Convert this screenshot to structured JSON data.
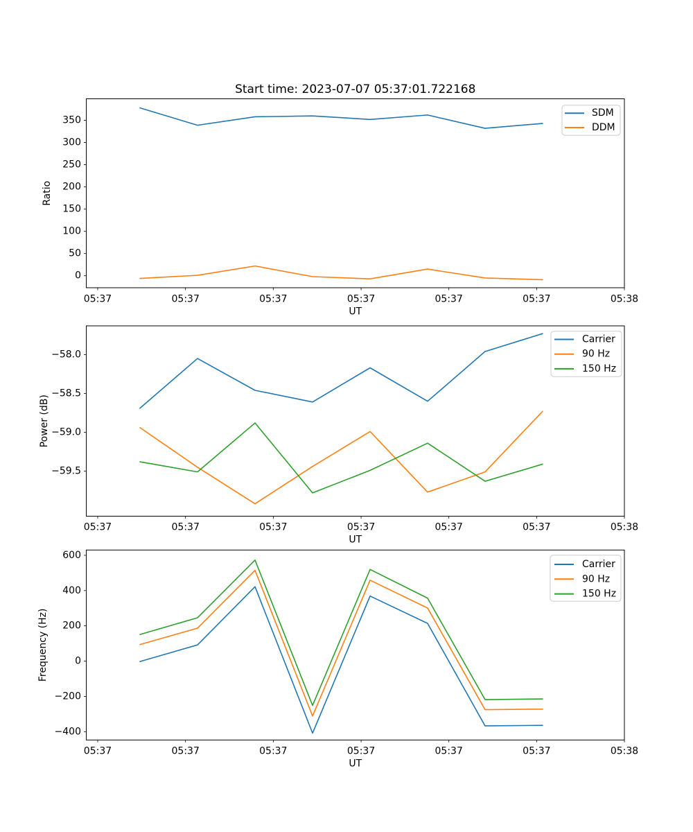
{
  "figure": {
    "background": "#ffffff",
    "text_color": "#000000"
  },
  "chart_data": [
    {
      "type": "line",
      "title": "Start time: 2023-07-07 05:37:01.722168",
      "xlabel": "UT",
      "ylabel": "Ratio",
      "grid": false,
      "legend_position": "upper right",
      "x_tick_labels": [
        "05:37",
        "05:37",
        "05:37",
        "05:37",
        "05:37",
        "05:37",
        "05:38"
      ],
      "x_tick_positions": [
        0.0212,
        0.1844,
        0.3475,
        0.5107,
        0.6738,
        0.8369,
        1.0
      ],
      "y_ticks": [
        0,
        50,
        100,
        150,
        200,
        250,
        300,
        350
      ],
      "y_tick_labels": [
        "0",
        "50",
        "100",
        "150",
        "200",
        "250",
        "300",
        "350"
      ],
      "ylim": [
        -27,
        398.5
      ],
      "x_positions": [
        0.0998,
        0.2067,
        0.3136,
        0.4205,
        0.5274,
        0.6343,
        0.7411,
        0.848
      ],
      "series": [
        {
          "name": "SDM",
          "color": "#1f77b4",
          "values": [
            378,
            339,
            358,
            360,
            352,
            362,
            332,
            343
          ]
        },
        {
          "name": "DDM",
          "color": "#ff7f0e",
          "values": [
            -6,
            1,
            22,
            -2,
            -7,
            15,
            -5,
            -9
          ]
        }
      ]
    },
    {
      "type": "line",
      "title": "",
      "xlabel": "UT",
      "ylabel": "Power (dB)",
      "grid": false,
      "legend_position": "upper right",
      "x_tick_labels": [
        "05:37",
        "05:37",
        "05:37",
        "05:37",
        "05:37",
        "05:37",
        "05:38"
      ],
      "x_tick_positions": [
        0.0212,
        0.1844,
        0.3475,
        0.5107,
        0.6738,
        0.8369,
        1.0
      ],
      "y_ticks": [
        -58.0,
        -58.5,
        -59.0,
        -59.5
      ],
      "y_tick_labels": [
        "−58.0",
        "−58.5",
        "−59.0",
        "−59.5"
      ],
      "ylim": [
        -60.08,
        -57.63
      ],
      "x_positions": [
        0.0998,
        0.2067,
        0.3136,
        0.4205,
        0.5274,
        0.6343,
        0.7411,
        0.848
      ],
      "series": [
        {
          "name": "Carrier",
          "color": "#1f77b4",
          "values": [
            -58.69,
            -58.05,
            -58.46,
            -58.61,
            -58.17,
            -58.6,
            -57.96,
            -57.73
          ]
        },
        {
          "name": "90 Hz",
          "color": "#ff7f0e",
          "values": [
            -58.94,
            -59.45,
            -59.92,
            -59.44,
            -58.99,
            -59.77,
            -59.51,
            -58.73
          ]
        },
        {
          "name": "150 Hz",
          "color": "#2ca02c",
          "values": [
            -59.38,
            -59.51,
            -58.88,
            -59.78,
            -59.49,
            -59.14,
            -59.63,
            -59.41
          ]
        }
      ]
    },
    {
      "type": "line",
      "title": "",
      "xlabel": "UT",
      "ylabel": "Frequency (Hz)",
      "grid": false,
      "legend_position": "upper right",
      "x_tick_labels": [
        "05:37",
        "05:37",
        "05:37",
        "05:37",
        "05:37",
        "05:37",
        "05:38"
      ],
      "x_tick_positions": [
        0.0212,
        0.1844,
        0.3475,
        0.5107,
        0.6738,
        0.8369,
        1.0
      ],
      "y_ticks": [
        600,
        400,
        200,
        0,
        -200,
        -400
      ],
      "y_tick_labels": [
        "600",
        "400",
        "200",
        "0",
        "−200",
        "−400"
      ],
      "ylim": [
        -447,
        630
      ],
      "x_positions": [
        0.0998,
        0.2067,
        0.3136,
        0.4205,
        0.5274,
        0.6343,
        0.7411,
        0.848
      ],
      "series": [
        {
          "name": "Carrier",
          "color": "#1f77b4",
          "values": [
            -2,
            92,
            422,
            -408,
            369,
            214,
            -367,
            -364
          ]
        },
        {
          "name": "90 Hz",
          "color": "#ff7f0e",
          "values": [
            94,
            187,
            515,
            -311,
            459,
            301,
            -275,
            -272
          ]
        },
        {
          "name": "150 Hz",
          "color": "#2ca02c",
          "values": [
            151,
            246,
            573,
            -251,
            520,
            357,
            -218,
            -214
          ]
        }
      ]
    }
  ]
}
